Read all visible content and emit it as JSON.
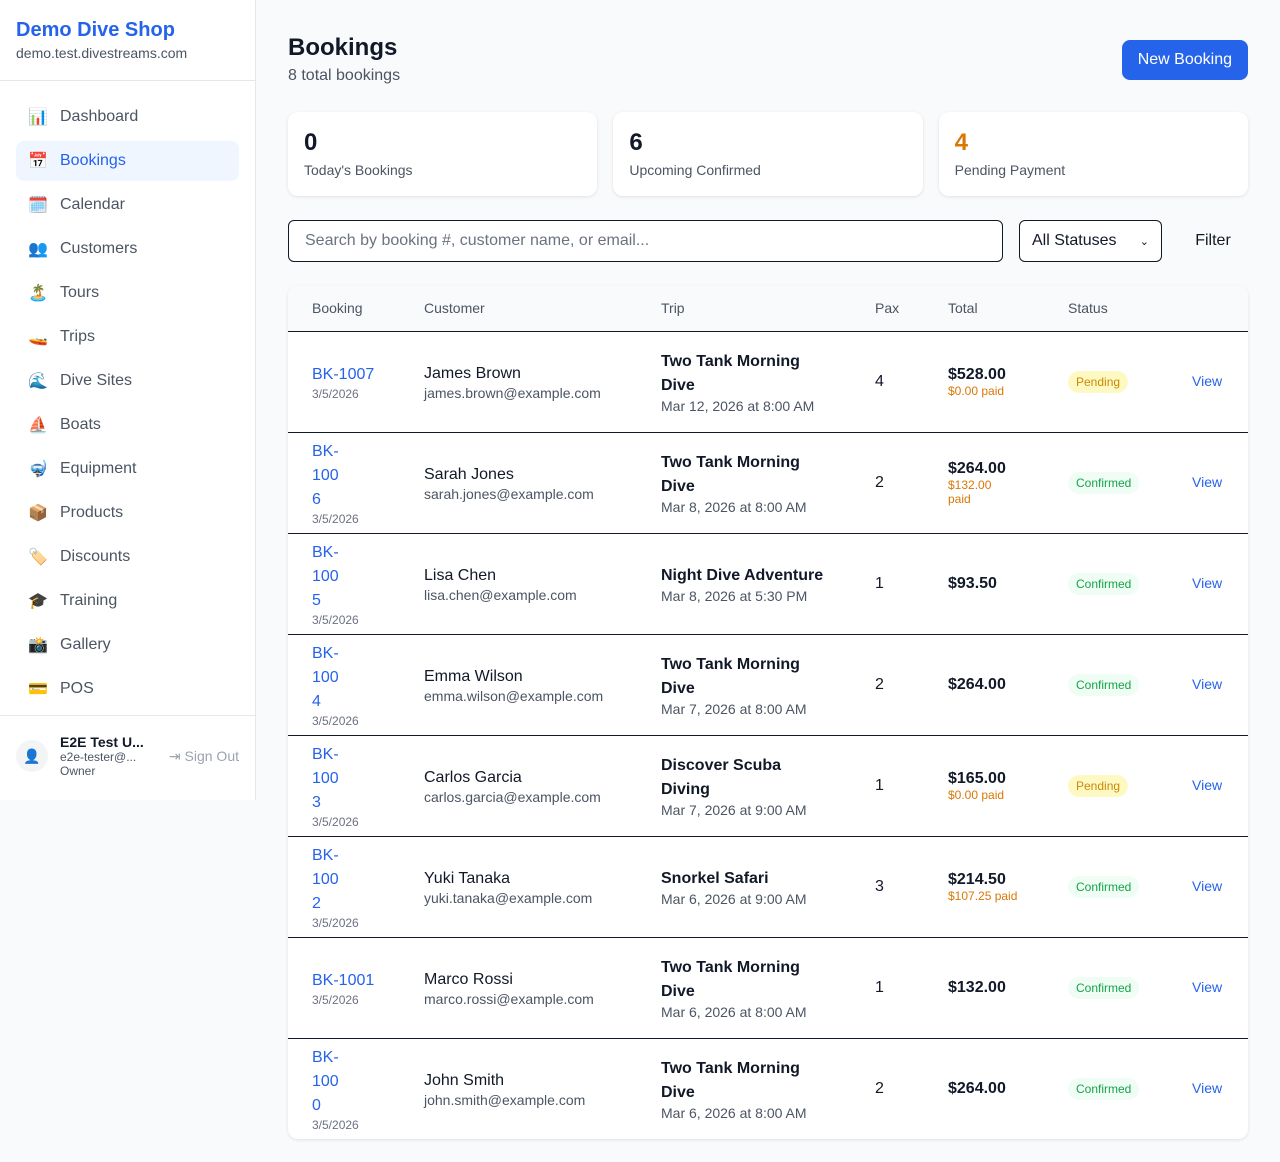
{
  "sidebar": {
    "shop_name": "Demo Dive Shop",
    "domain": "demo.test.divestreams.com",
    "items": [
      {
        "icon": "📊",
        "icon_name": "bar-chart-icon",
        "label": "Dashboard"
      },
      {
        "icon": "📅",
        "icon_name": "calendar-17-icon",
        "label": "Bookings",
        "active": true
      },
      {
        "icon": "🗓️",
        "icon_name": "spiral-calendar-icon",
        "label": "Calendar"
      },
      {
        "icon": "👥",
        "icon_name": "people-icon",
        "label": "Customers"
      },
      {
        "icon": "🏝️",
        "icon_name": "island-icon",
        "label": "Tours"
      },
      {
        "icon": "🚤",
        "icon_name": "speedboat-icon",
        "label": "Trips"
      },
      {
        "icon": "🌊",
        "icon_name": "wave-icon",
        "label": "Dive Sites"
      },
      {
        "icon": "⛵",
        "icon_name": "sailboat-icon",
        "label": "Boats"
      },
      {
        "icon": "🤿",
        "icon_name": "diving-mask-icon",
        "label": "Equipment"
      },
      {
        "icon": "📦",
        "icon_name": "package-icon",
        "label": "Products"
      },
      {
        "icon": "🏷️",
        "icon_name": "tag-icon",
        "label": "Discounts"
      },
      {
        "icon": "🎓",
        "icon_name": "graduation-cap-icon",
        "label": "Training"
      },
      {
        "icon": "📸",
        "icon_name": "camera-icon",
        "label": "Gallery"
      },
      {
        "icon": "💳",
        "icon_name": "credit-card-icon",
        "label": "POS"
      }
    ],
    "user": {
      "name": "E2E Test U...",
      "email": "e2e-tester@...",
      "role": "Owner",
      "sign_out": "Sign Out"
    }
  },
  "header": {
    "title": "Bookings",
    "subtitle": "8 total bookings",
    "new_button": "New Booking"
  },
  "stats": [
    {
      "value": "0",
      "label": "Today's Bookings",
      "color": "#111827"
    },
    {
      "value": "6",
      "label": "Upcoming Confirmed",
      "color": "#111827"
    },
    {
      "value": "4",
      "label": "Pending Payment",
      "color": "#d97706"
    }
  ],
  "filters": {
    "search_placeholder": "Search by booking #, customer name, or email...",
    "search_value": "",
    "status_selected": "All Statuses",
    "filter_button": "Filter"
  },
  "table": {
    "columns": [
      "Booking",
      "Customer",
      "Trip",
      "Pax",
      "Total",
      "Status",
      ""
    ],
    "rows": [
      {
        "id": "BK-1007",
        "date": "3/5/2026",
        "customer": "James Brown",
        "email": "james.brown@example.com",
        "trip": "Two Tank Morning Dive",
        "trip_date": "Mar 12, 2026 at 8:00 AM",
        "pax": "4",
        "total": "$528.00",
        "paid": "$0.00 paid",
        "status": "Pending",
        "action": "View"
      },
      {
        "id": "BK-1006",
        "date": "3/5/2026",
        "customer": "Sarah Jones",
        "email": "sarah.jones@example.com",
        "trip": "Two Tank Morning Dive",
        "trip_date": "Mar 8, 2026 at 8:00 AM",
        "pax": "2",
        "total": "$264.00",
        "paid": "$132.00 paid",
        "status": "Confirmed",
        "action": "View"
      },
      {
        "id": "BK-1005",
        "date": "3/5/2026",
        "customer": "Lisa Chen",
        "email": "lisa.chen@example.com",
        "trip": "Night Dive Adventure",
        "trip_date": "Mar 8, 2026 at 5:30 PM",
        "pax": "1",
        "total": "$93.50",
        "paid": "",
        "status": "Confirmed",
        "action": "View"
      },
      {
        "id": "BK-1004",
        "date": "3/5/2026",
        "customer": "Emma Wilson",
        "email": "emma.wilson@example.com",
        "trip": "Two Tank Morning Dive",
        "trip_date": "Mar 7, 2026 at 8:00 AM",
        "pax": "2",
        "total": "$264.00",
        "paid": "",
        "status": "Confirmed",
        "action": "View"
      },
      {
        "id": "BK-1003",
        "date": "3/5/2026",
        "customer": "Carlos Garcia",
        "email": "carlos.garcia@example.com",
        "trip": "Discover Scuba Diving",
        "trip_date": "Mar 7, 2026 at 9:00 AM",
        "pax": "1",
        "total": "$165.00",
        "paid": "$0.00 paid",
        "status": "Pending",
        "action": "View"
      },
      {
        "id": "BK-1002",
        "date": "3/5/2026",
        "customer": "Yuki Tanaka",
        "email": "yuki.tanaka@example.com",
        "trip": "Snorkel Safari",
        "trip_date": "Mar 6, 2026 at 9:00 AM",
        "pax": "3",
        "total": "$214.50",
        "paid": "$107.25 paid",
        "status": "Confirmed",
        "action": "View"
      },
      {
        "id": "BK-1001",
        "date": "3/5/2026",
        "customer": "Marco Rossi",
        "email": "marco.rossi@example.com",
        "trip": "Two Tank Morning Dive",
        "trip_date": "Mar 6, 2026 at 8:00 AM",
        "pax": "1",
        "total": "$132.00",
        "paid": "",
        "status": "Confirmed",
        "action": "View"
      },
      {
        "id": "BK-1000",
        "date": "3/5/2026",
        "customer": "John Smith",
        "email": "john.smith@example.com",
        "trip": "Two Tank Morning Dive",
        "trip_date": "Mar 6, 2026 at 8:00 AM",
        "pax": "2",
        "total": "$264.00",
        "paid": "",
        "status": "Confirmed",
        "action": "View"
      }
    ]
  }
}
